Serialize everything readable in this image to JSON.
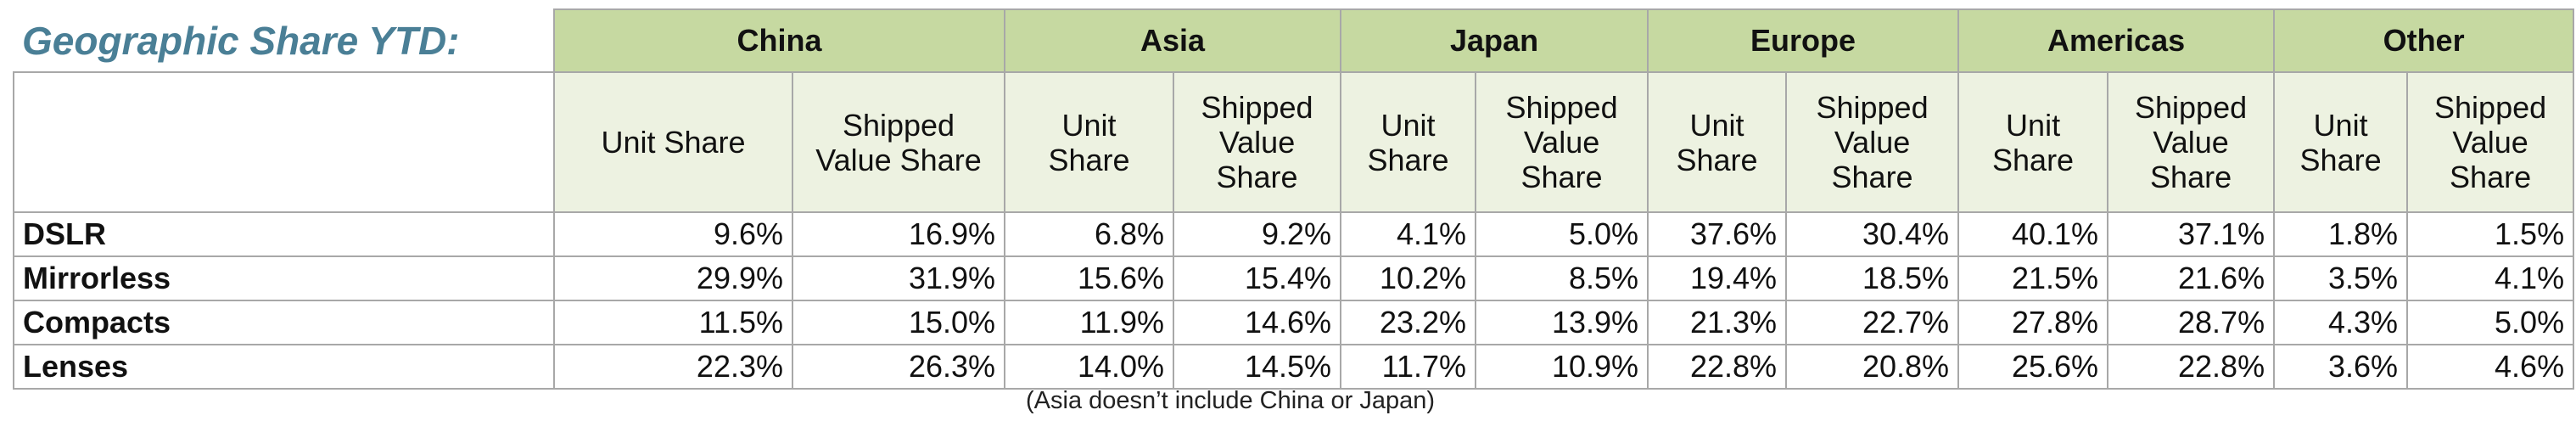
{
  "title": "Geographic Share YTD:",
  "regions": [
    {
      "name": "China",
      "columns": [
        "Unit Share",
        "Shipped Value Share"
      ]
    },
    {
      "name": "Asia",
      "columns": [
        "Unit Share",
        "Shipped Value Share"
      ]
    },
    {
      "name": "Japan",
      "columns": [
        "Unit Share",
        "Shipped Value Share"
      ]
    },
    {
      "name": "Europe",
      "columns": [
        "Unit Share",
        "Shipped Value Share"
      ]
    },
    {
      "name": "Americas",
      "columns": [
        "Unit Share",
        "Shipped Value Share"
      ]
    },
    {
      "name": "Other",
      "columns": [
        "Unit Share",
        "Shipped Value Share"
      ]
    }
  ],
  "rows": [
    {
      "label": "DSLR",
      "values": [
        "9.6%",
        "16.9%",
        "6.8%",
        "9.2%",
        "4.1%",
        "5.0%",
        "37.6%",
        "30.4%",
        "40.1%",
        "37.1%",
        "1.8%",
        "1.5%"
      ]
    },
    {
      "label": "Mirrorless",
      "values": [
        "29.9%",
        "31.9%",
        "15.6%",
        "15.4%",
        "10.2%",
        "8.5%",
        "19.4%",
        "18.5%",
        "21.5%",
        "21.6%",
        "3.5%",
        "4.1%"
      ]
    },
    {
      "label": "Compacts",
      "values": [
        "11.5%",
        "15.0%",
        "11.9%",
        "14.6%",
        "23.2%",
        "13.9%",
        "21.3%",
        "22.7%",
        "27.8%",
        "28.7%",
        "4.3%",
        "5.0%"
      ]
    },
    {
      "label": "Lenses",
      "values": [
        "22.3%",
        "26.3%",
        "14.0%",
        "14.5%",
        "11.7%",
        "10.9%",
        "22.8%",
        "20.8%",
        "25.6%",
        "22.8%",
        "3.6%",
        "4.6%"
      ]
    }
  ],
  "footnote": "(Asia doesn’t include China or Japan)"
}
